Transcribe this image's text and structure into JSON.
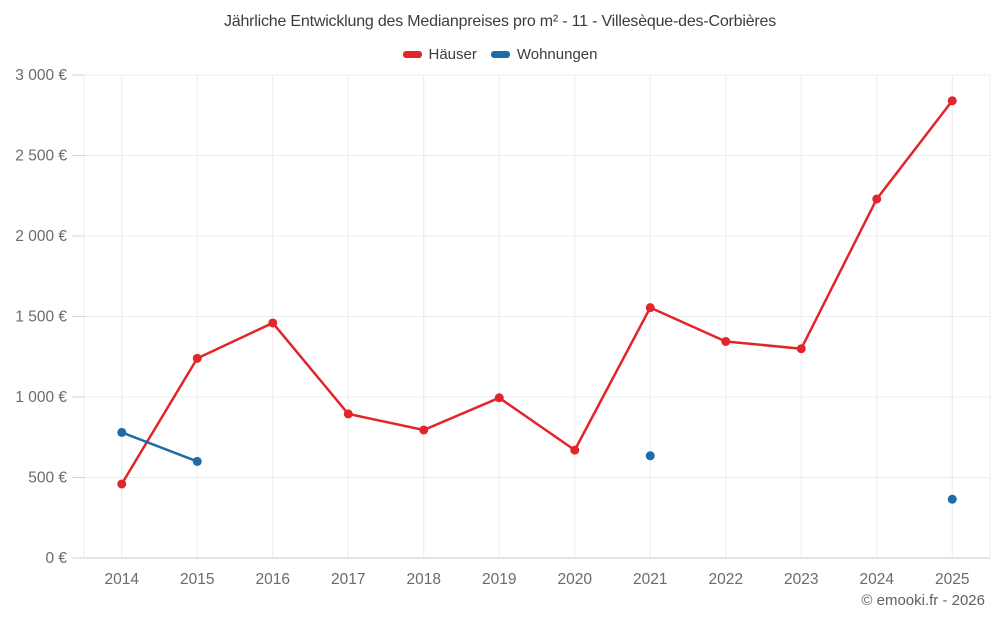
{
  "title": "Jährliche Entwicklung des Medianpreises pro m² - 11 - Villesèque-des-Corbières",
  "attribution": "© emooki.fr - 2026",
  "legend": {
    "items": [
      {
        "label": "Häuser",
        "color": "#e2242b"
      },
      {
        "label": "Wohnungen",
        "color": "#1b6ca8"
      }
    ]
  },
  "chart_data": {
    "type": "line",
    "title": "Jährliche Entwicklung des Medianpreises pro m² - 11 - Villesèque-des-Corbières",
    "categories": [
      "2014",
      "2015",
      "2016",
      "2017",
      "2018",
      "2019",
      "2020",
      "2021",
      "2022",
      "2023",
      "2024",
      "2025"
    ],
    "series": [
      {
        "name": "Häuser",
        "color": "#e2242b",
        "values": [
          460,
          1240,
          1460,
          895,
          795,
          995,
          670,
          1555,
          1345,
          1300,
          2230,
          2840
        ]
      },
      {
        "name": "Wohnungen",
        "color": "#1b6ca8",
        "values": [
          780,
          600,
          null,
          null,
          null,
          null,
          null,
          635,
          null,
          null,
          null,
          365
        ]
      }
    ],
    "xlabel": "",
    "ylabel": "",
    "ylim": [
      0,
      3000
    ],
    "yticks": [
      {
        "v": 0,
        "label": "0 €"
      },
      {
        "v": 500,
        "label": "500 €"
      },
      {
        "v": 1000,
        "label": "1 000 €"
      },
      {
        "v": 1500,
        "label": "1 500 €"
      },
      {
        "v": 2000,
        "label": "2 000 €"
      },
      {
        "v": 2500,
        "label": "2 500 €"
      },
      {
        "v": 3000,
        "label": "3 000 €"
      }
    ],
    "grid": true,
    "legend_position": "top",
    "grid_color": "#ececec",
    "axis_color": "#c9c9c9",
    "tick_color": "#d4d4d4",
    "tick_label_color": "#6b6b6b"
  }
}
